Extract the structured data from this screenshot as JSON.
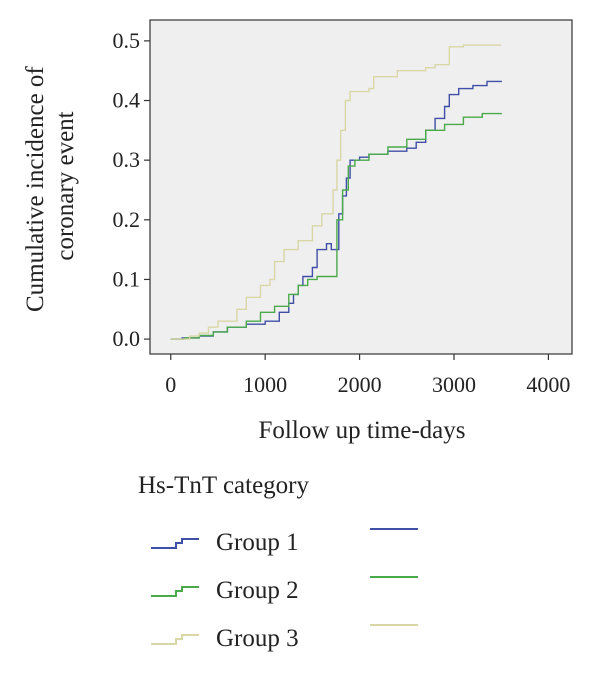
{
  "chart_data": {
    "type": "line",
    "step": true,
    "xlabel": "Follow up time-days",
    "ylabel_lines": [
      "Cumulative incidence of",
      "coronary event"
    ],
    "xlim": [
      -220,
      4250
    ],
    "ylim": [
      -0.025,
      0.535
    ],
    "xticks": [
      0,
      1000,
      2000,
      3000,
      4000
    ],
    "yticks": [
      0.0,
      0.1,
      0.2,
      0.3,
      0.4,
      0.5
    ],
    "ytick_labels": [
      "0.0",
      "0.1",
      "0.2",
      "0.3",
      "0.4",
      "0.5"
    ],
    "grid": false,
    "legend_title": "Hs-TnT category",
    "series": [
      {
        "name": "Group 1",
        "color": "#3f4fa8",
        "points": [
          [
            0,
            0
          ],
          [
            120,
            0.002
          ],
          [
            300,
            0.005
          ],
          [
            450,
            0.012
          ],
          [
            600,
            0.02
          ],
          [
            800,
            0.025
          ],
          [
            1000,
            0.03
          ],
          [
            1150,
            0.045
          ],
          [
            1250,
            0.06
          ],
          [
            1300,
            0.075
          ],
          [
            1350,
            0.09
          ],
          [
            1400,
            0.105
          ],
          [
            1500,
            0.12
          ],
          [
            1550,
            0.15
          ],
          [
            1650,
            0.16
          ],
          [
            1700,
            0.15
          ],
          [
            1780,
            0.21
          ],
          [
            1820,
            0.24
          ],
          [
            1860,
            0.27
          ],
          [
            1900,
            0.3
          ],
          [
            2000,
            0.305
          ],
          [
            2100,
            0.31
          ],
          [
            2300,
            0.315
          ],
          [
            2500,
            0.32
          ],
          [
            2600,
            0.33
          ],
          [
            2700,
            0.35
          ],
          [
            2800,
            0.37
          ],
          [
            2900,
            0.39
          ],
          [
            2950,
            0.41
          ],
          [
            3050,
            0.42
          ],
          [
            3200,
            0.425
          ],
          [
            3350,
            0.432
          ],
          [
            3500,
            0.433
          ]
        ]
      },
      {
        "name": "Group 2",
        "color": "#4aaa4a",
        "points": [
          [
            0,
            0
          ],
          [
            150,
            0.002
          ],
          [
            300,
            0.006
          ],
          [
            450,
            0.012
          ],
          [
            600,
            0.02
          ],
          [
            800,
            0.03
          ],
          [
            950,
            0.045
          ],
          [
            1100,
            0.055
          ],
          [
            1250,
            0.075
          ],
          [
            1350,
            0.09
          ],
          [
            1450,
            0.1
          ],
          [
            1550,
            0.105
          ],
          [
            1700,
            0.105
          ],
          [
            1760,
            0.2
          ],
          [
            1820,
            0.25
          ],
          [
            1880,
            0.29
          ],
          [
            1950,
            0.3
          ],
          [
            2100,
            0.31
          ],
          [
            2300,
            0.322
          ],
          [
            2500,
            0.335
          ],
          [
            2700,
            0.35
          ],
          [
            2900,
            0.36
          ],
          [
            3100,
            0.372
          ],
          [
            3300,
            0.378
          ],
          [
            3500,
            0.379
          ]
        ]
      },
      {
        "name": "Group 3",
        "color": "#d9d7a6",
        "points": [
          [
            0,
            0
          ],
          [
            200,
            0.005
          ],
          [
            300,
            0.01
          ],
          [
            400,
            0.02
          ],
          [
            500,
            0.03
          ],
          [
            700,
            0.05
          ],
          [
            800,
            0.07
          ],
          [
            950,
            0.09
          ],
          [
            1050,
            0.1
          ],
          [
            1100,
            0.13
          ],
          [
            1200,
            0.15
          ],
          [
            1350,
            0.165
          ],
          [
            1500,
            0.19
          ],
          [
            1600,
            0.21
          ],
          [
            1720,
            0.25
          ],
          [
            1760,
            0.3
          ],
          [
            1800,
            0.35
          ],
          [
            1850,
            0.4
          ],
          [
            1900,
            0.415
          ],
          [
            2100,
            0.42
          ],
          [
            2150,
            0.44
          ],
          [
            2400,
            0.45
          ],
          [
            2700,
            0.455
          ],
          [
            2800,
            0.46
          ],
          [
            2950,
            0.49
          ],
          [
            3100,
            0.493
          ],
          [
            3500,
            0.493
          ]
        ]
      }
    ]
  }
}
